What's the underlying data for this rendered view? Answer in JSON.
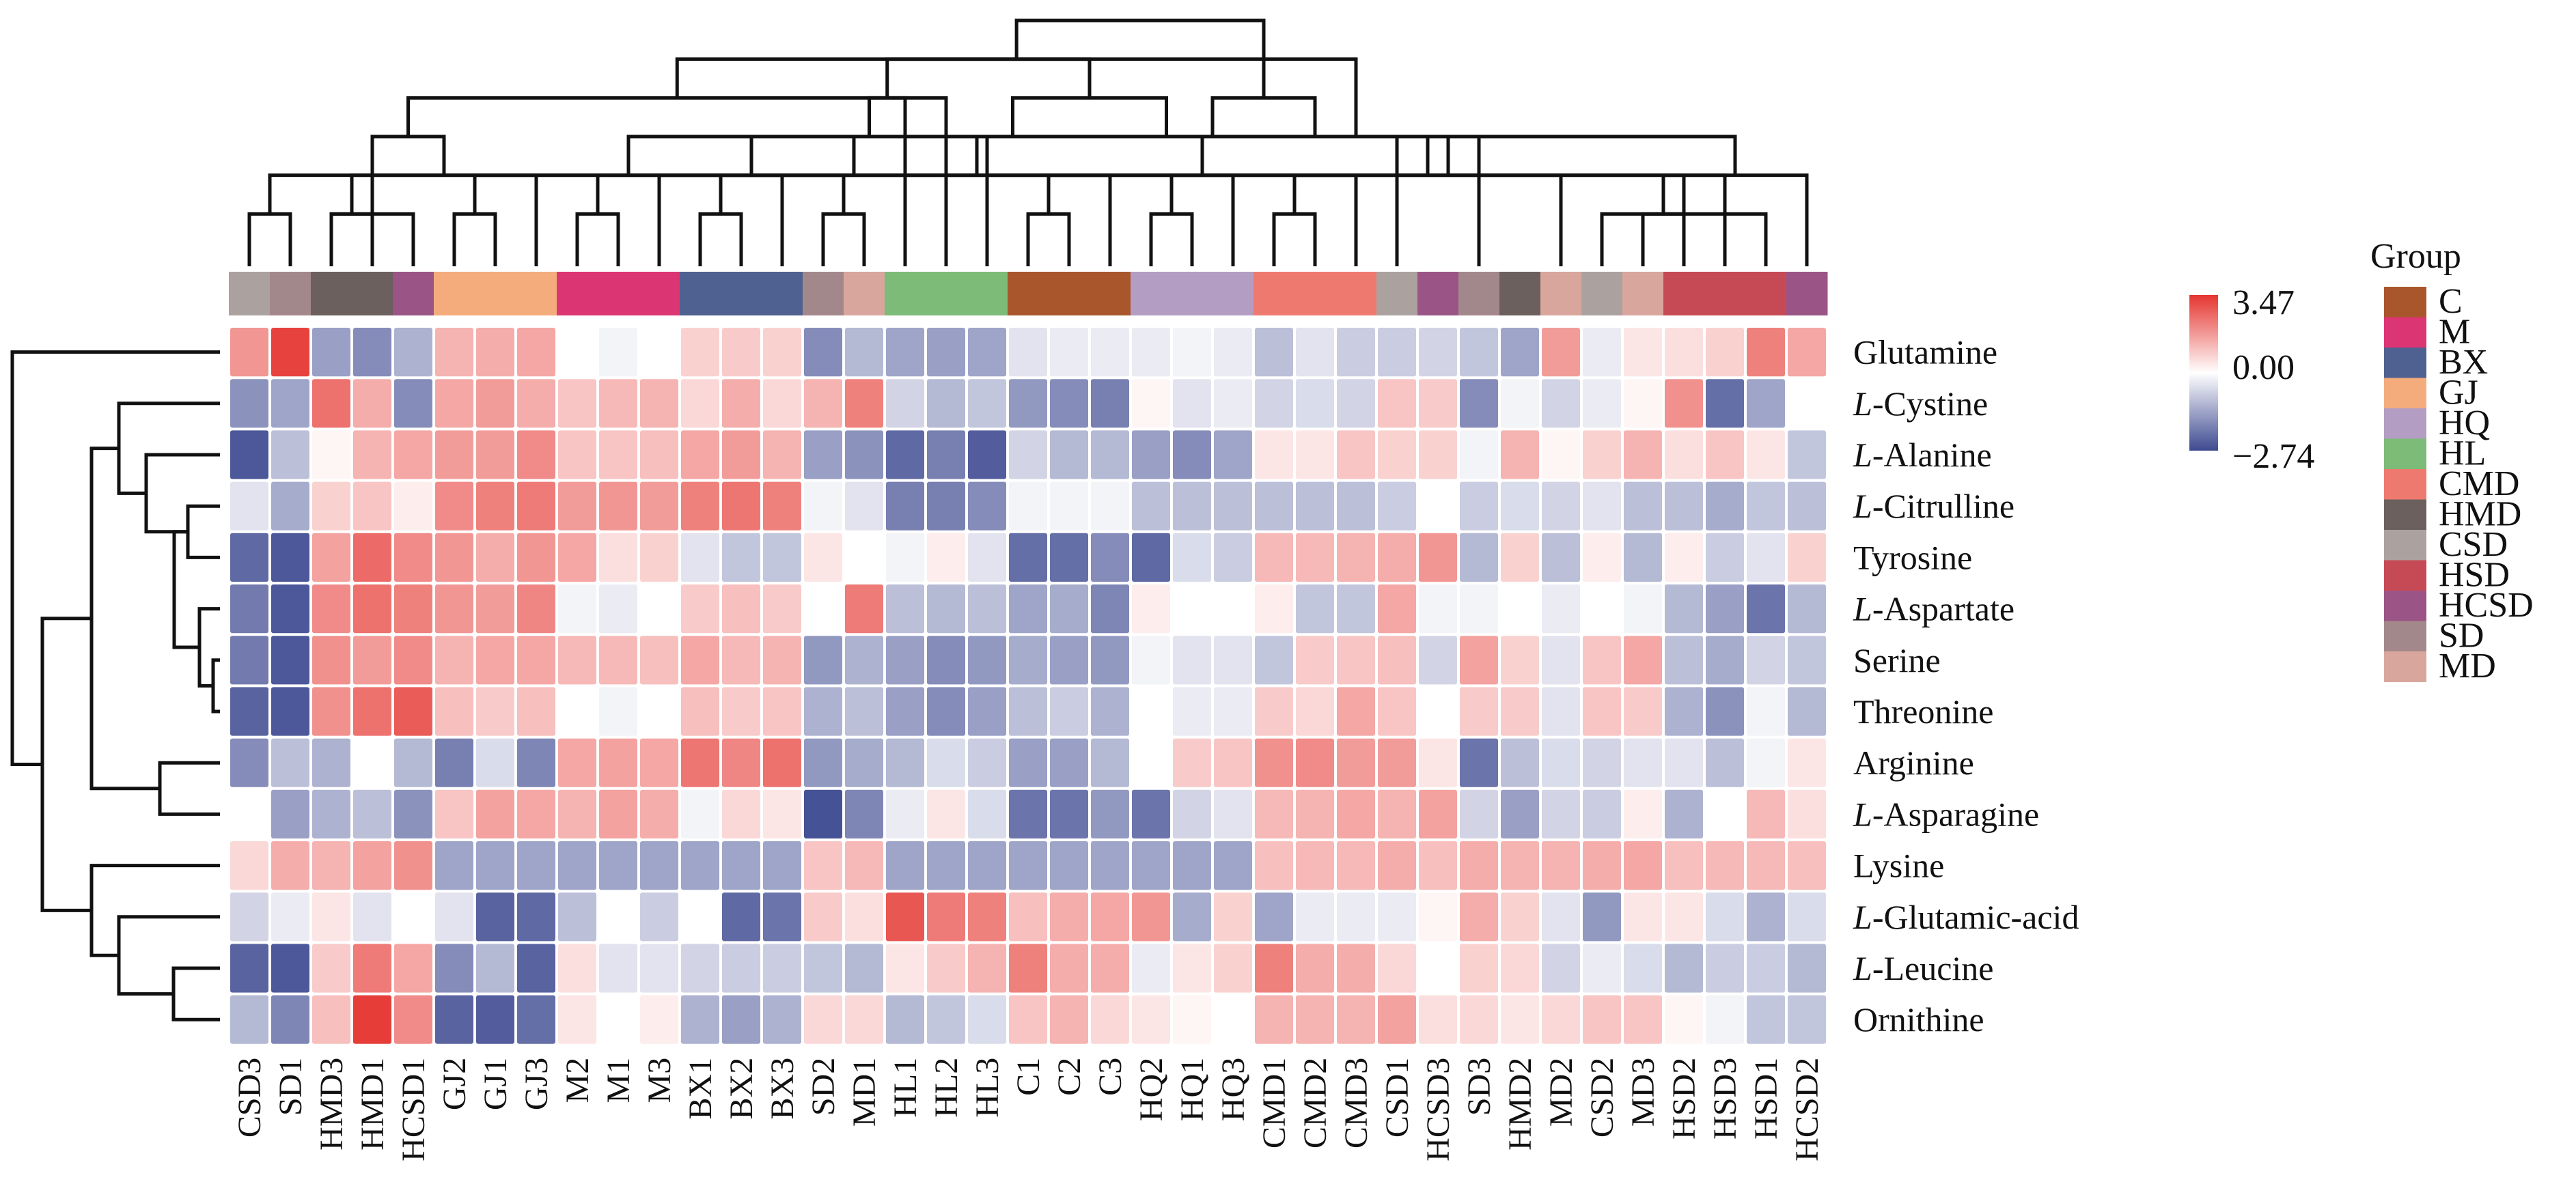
{
  "chart_data": {
    "type": "heatmap",
    "title": "",
    "rows": [
      "Glutamine",
      "L-Cystine",
      "L-Alanine",
      "L-Citrulline",
      "Tyrosine",
      "L-Aspartate",
      "Serine",
      "Threonine",
      "Arginine",
      "L-Asparagine",
      "Lysine",
      "L-Glutamic-acid",
      "L-Leucine",
      "Ornithine"
    ],
    "row_italic_prefix": [
      false,
      true,
      true,
      true,
      false,
      true,
      false,
      false,
      false,
      true,
      false,
      true,
      true,
      false
    ],
    "columns": [
      "CSD3",
      "SD1",
      "HMD3",
      "HMD1",
      "HCSD1",
      "GJ2",
      "GJ1",
      "GJ3",
      "M2",
      "M1",
      "M3",
      "BX1",
      "BX2",
      "BX3",
      "SD2",
      "MD1",
      "HL1",
      "HL2",
      "HL3",
      "C1",
      "C2",
      "C3",
      "HQ2",
      "HQ1",
      "HQ3",
      "CMD1",
      "CMD2",
      "CMD3",
      "CSD1",
      "HCSD3",
      "SD3",
      "HMD2",
      "MD2",
      "CSD2",
      "MD3",
      "HSD2",
      "HSD3",
      "HSD1",
      "HCSD2"
    ],
    "column_groups": [
      "CSD",
      "SD",
      "HMD",
      "HMD",
      "HCSD",
      "GJ",
      "GJ",
      "GJ",
      "M",
      "M",
      "M",
      "BX",
      "BX",
      "BX",
      "SD",
      "MD",
      "HL",
      "HL",
      "HL",
      "C",
      "C",
      "C",
      "HQ",
      "HQ",
      "HQ",
      "CMD",
      "CMD",
      "CMD",
      "CSD",
      "HCSD",
      "SD",
      "HMD",
      "MD",
      "CSD",
      "MD",
      "HSD",
      "HSD",
      "HSD",
      "HCSD"
    ],
    "values": [
      [
        1.6,
        3.2,
        -1.3,
        -1.6,
        -1.0,
        1.1,
        1.2,
        1.3,
        0.0,
        -0.1,
        0.0,
        0.6,
        0.7,
        0.6,
        -1.6,
        -0.9,
        -1.2,
        -1.3,
        -1.2,
        -0.3,
        -0.2,
        -0.2,
        -0.2,
        -0.1,
        -0.2,
        -0.8,
        -0.3,
        -0.6,
        -0.6,
        -0.5,
        -0.7,
        -1.2,
        1.5,
        -0.2,
        0.3,
        0.4,
        0.6,
        2.0,
        1.3
      ],
      [
        -1.5,
        -1.2,
        2.3,
        1.2,
        -1.6,
        1.3,
        1.5,
        1.2,
        0.8,
        1.0,
        1.1,
        0.5,
        1.2,
        0.5,
        1.1,
        2.0,
        -0.5,
        -0.9,
        -0.7,
        -1.4,
        -1.6,
        -1.8,
        0.1,
        -0.3,
        -0.2,
        -0.5,
        -0.4,
        -0.5,
        0.8,
        0.7,
        -1.6,
        -0.1,
        -0.5,
        -0.2,
        0.1,
        1.7,
        -2.1,
        -1.2,
        0.0
      ],
      [
        -2.5,
        -0.8,
        0.1,
        1.1,
        1.3,
        1.5,
        1.5,
        1.8,
        0.8,
        0.8,
        0.9,
        1.3,
        1.5,
        1.1,
        -1.3,
        -1.5,
        -2.2,
        -1.8,
        -2.4,
        -0.5,
        -0.9,
        -0.9,
        -1.3,
        -1.6,
        -1.2,
        0.3,
        0.3,
        0.8,
        0.6,
        0.6,
        -0.1,
        1.1,
        0.1,
        0.6,
        1.1,
        0.4,
        0.8,
        0.3,
        -0.7
      ],
      [
        -0.3,
        -1.1,
        0.6,
        0.8,
        0.2,
        1.8,
        2.0,
        2.1,
        1.5,
        1.6,
        1.5,
        2.0,
        2.2,
        2.0,
        -0.1,
        -0.3,
        -1.8,
        -1.8,
        -1.6,
        -0.1,
        -0.1,
        -0.1,
        -0.8,
        -0.8,
        -0.8,
        -0.8,
        -0.8,
        -0.8,
        -0.6,
        0.0,
        -0.6,
        -0.4,
        -0.5,
        -0.3,
        -0.8,
        -0.8,
        -1.1,
        -0.7,
        -0.8
      ],
      [
        -2.2,
        -2.5,
        1.4,
        2.4,
        1.8,
        1.6,
        1.2,
        1.6,
        1.3,
        0.4,
        0.6,
        -0.3,
        -0.7,
        -0.7,
        0.3,
        0.0,
        -0.1,
        0.2,
        -0.3,
        -2.1,
        -2.1,
        -1.6,
        -2.2,
        -0.4,
        -0.6,
        1.0,
        1.0,
        1.1,
        1.2,
        1.6,
        -0.9,
        0.6,
        -0.8,
        0.2,
        -0.9,
        0.2,
        -0.6,
        -0.3,
        0.6
      ],
      [
        -1.9,
        -2.5,
        1.8,
        2.3,
        2.0,
        1.6,
        1.5,
        1.9,
        -0.1,
        -0.2,
        0.0,
        0.7,
        0.9,
        0.7,
        0.0,
        2.1,
        -0.8,
        -0.9,
        -0.8,
        -1.2,
        -1.1,
        -1.7,
        0.2,
        0.0,
        0.0,
        0.2,
        -0.7,
        -0.7,
        1.3,
        -0.1,
        -0.1,
        0.0,
        -0.2,
        0.0,
        -0.1,
        -0.9,
        -1.3,
        -2.0,
        -0.9
      ],
      [
        -1.9,
        -2.5,
        1.7,
        1.5,
        1.8,
        1.1,
        1.3,
        1.3,
        1.0,
        1.0,
        0.9,
        1.3,
        1.0,
        1.1,
        -1.4,
        -1.0,
        -1.3,
        -1.6,
        -1.4,
        -1.1,
        -1.3,
        -1.4,
        -0.1,
        -0.3,
        -0.3,
        -0.7,
        0.7,
        0.8,
        0.9,
        -0.5,
        1.4,
        0.6,
        -0.3,
        0.8,
        1.3,
        -0.8,
        -1.1,
        -0.5,
        -0.7
      ],
      [
        -2.3,
        -2.5,
        1.7,
        2.3,
        2.7,
        0.9,
        0.7,
        0.9,
        0.0,
        -0.1,
        0.0,
        0.9,
        0.7,
        0.8,
        -1.0,
        -0.8,
        -1.3,
        -1.6,
        -1.3,
        -0.8,
        -0.6,
        -1.0,
        0.0,
        -0.2,
        -0.2,
        0.7,
        0.5,
        1.3,
        0.8,
        0.0,
        0.7,
        0.7,
        -0.3,
        0.8,
        0.7,
        -1.0,
        -1.5,
        -0.1,
        -0.9
      ],
      [
        -1.6,
        -0.8,
        -1.0,
        0.0,
        -0.9,
        -1.8,
        -0.4,
        -1.7,
        1.3,
        1.4,
        1.3,
        2.2,
        1.9,
        2.3,
        -1.4,
        -1.1,
        -0.9,
        -0.4,
        -0.6,
        -1.3,
        -1.3,
        -0.9,
        0.0,
        0.7,
        0.8,
        1.7,
        1.8,
        1.5,
        1.5,
        0.3,
        -2.0,
        -0.8,
        -0.4,
        -0.5,
        -0.3,
        -0.3,
        -0.8,
        -0.1,
        0.3
      ],
      [
        0.0,
        -1.3,
        -1.0,
        -0.8,
        -1.5,
        0.8,
        1.4,
        1.3,
        1.1,
        1.4,
        1.2,
        -0.1,
        0.5,
        0.3,
        -2.6,
        -1.7,
        -0.2,
        0.3,
        -0.4,
        -2.0,
        -2.0,
        -1.4,
        -2.0,
        -0.5,
        -0.3,
        1.0,
        1.1,
        1.3,
        1.1,
        1.4,
        -0.5,
        -1.3,
        -0.5,
        -0.6,
        0.2,
        -1.0,
        0.0,
        1.0,
        0.4
      ],
      [
        0.5,
        1.2,
        1.1,
        1.4,
        1.7,
        -1.2,
        -1.2,
        -1.2,
        -1.2,
        -1.2,
        -1.2,
        -1.2,
        -1.2,
        -1.2,
        0.8,
        1.0,
        -1.2,
        -1.2,
        -1.2,
        -1.2,
        -1.2,
        -1.2,
        -1.2,
        -1.2,
        -1.2,
        0.9,
        1.0,
        1.0,
        1.2,
        0.9,
        1.2,
        1.1,
        1.1,
        1.2,
        1.3,
        0.9,
        1.0,
        1.0,
        0.9
      ],
      [
        -0.5,
        -0.2,
        0.3,
        -0.3,
        0.0,
        -0.3,
        -2.3,
        -2.2,
        -0.8,
        0.0,
        -0.6,
        0.0,
        -2.2,
        -2.0,
        0.7,
        0.4,
        2.8,
        2.1,
        2.0,
        0.9,
        1.2,
        1.3,
        1.6,
        -1.1,
        0.6,
        -1.2,
        -0.2,
        -0.2,
        -0.2,
        0.1,
        1.2,
        0.6,
        -0.3,
        -1.4,
        0.3,
        0.3,
        -0.4,
        -1.0,
        -0.4
      ],
      [
        -2.3,
        -2.5,
        0.7,
        2.1,
        1.3,
        -1.6,
        -0.9,
        -2.3,
        0.4,
        -0.3,
        -0.3,
        -0.5,
        -0.6,
        -0.6,
        -0.7,
        -0.9,
        0.3,
        0.7,
        1.1,
        2.0,
        1.2,
        1.2,
        -0.2,
        0.3,
        0.6,
        2.0,
        1.2,
        1.2,
        0.5,
        0.0,
        0.6,
        0.5,
        -0.5,
        -0.2,
        -0.4,
        -0.9,
        -0.6,
        -0.6,
        -0.9
      ],
      [
        -0.9,
        -1.7,
        0.9,
        3.3,
        1.8,
        -2.3,
        -2.4,
        -2.1,
        0.3,
        0.0,
        0.2,
        -1.0,
        -1.3,
        -1.0,
        0.5,
        0.5,
        -0.9,
        -0.7,
        -0.4,
        0.8,
        1.1,
        0.5,
        0.3,
        0.1,
        0.0,
        1.1,
        1.1,
        1.1,
        1.4,
        0.4,
        0.5,
        0.3,
        0.5,
        0.8,
        0.8,
        0.1,
        -0.1,
        -0.7,
        -0.7
      ]
    ],
    "colorbar": {
      "min": -2.74,
      "mid": 0.0,
      "max": 3.47,
      "min_label": "−2.74",
      "mid_label": "0.00",
      "max_label": "3.47",
      "low_color": "#3e4a91",
      "mid_color": "#ffffff",
      "high_color": "#e53530"
    },
    "legend": {
      "title": "Group",
      "placement": "right",
      "items": [
        {
          "label": "C",
          "color": "#a9562c"
        },
        {
          "label": "M",
          "color": "#dc3574"
        },
        {
          "label": "BX",
          "color": "#4f6190"
        },
        {
          "label": "GJ",
          "color": "#f5ac7d"
        },
        {
          "label": "HQ",
          "color": "#b49dc2"
        },
        {
          "label": "HL",
          "color": "#7dbb78"
        },
        {
          "label": "CMD",
          "color": "#ee7a6f"
        },
        {
          "label": "HMD",
          "color": "#6b605d"
        },
        {
          "label": "CSD",
          "color": "#aba29f"
        },
        {
          "label": "HSD",
          "color": "#c64a55"
        },
        {
          "label": "HCSD",
          "color": "#9b5486"
        },
        {
          "label": "SD",
          "color": "#a3888b"
        },
        {
          "label": "MD",
          "color": "#d8a69c"
        }
      ]
    },
    "col_dendrogram": [
      [
        0,
        1
      ],
      [
        2,
        3
      ],
      [
        14,
        15
      ],
      [
        5,
        6
      ],
      [
        8,
        9
      ],
      [
        11,
        12
      ],
      [
        19,
        20
      ],
      [
        22,
        23
      ],
      [
        25,
        26
      ],
      [
        34,
        35
      ],
      [
        33,
        37
      ],
      [
        2,
        4
      ],
      [
        7,
        40
      ],
      [
        10,
        41
      ],
      [
        13,
        42
      ],
      [
        21,
        43
      ],
      [
        24,
        44
      ],
      [
        27,
        45
      ],
      [
        32,
        47
      ],
      [
        36,
        46
      ],
      [
        38,
        48
      ],
      [
        39,
        49
      ],
      [
        50,
        51
      ],
      [
        18,
        52
      ],
      [
        28,
        53
      ],
      [
        30,
        54
      ],
      [
        57,
        56
      ],
      [
        55,
        58
      ],
      [
        60,
        59
      ],
      [
        17,
        61
      ],
      [
        16,
        62
      ],
      [
        63,
        64
      ],
      [
        65,
        66
      ],
      [
        67,
        68
      ],
      [
        69,
        70
      ],
      [
        71,
        72
      ]
    ],
    "row_dendrogram": "clustered"
  }
}
